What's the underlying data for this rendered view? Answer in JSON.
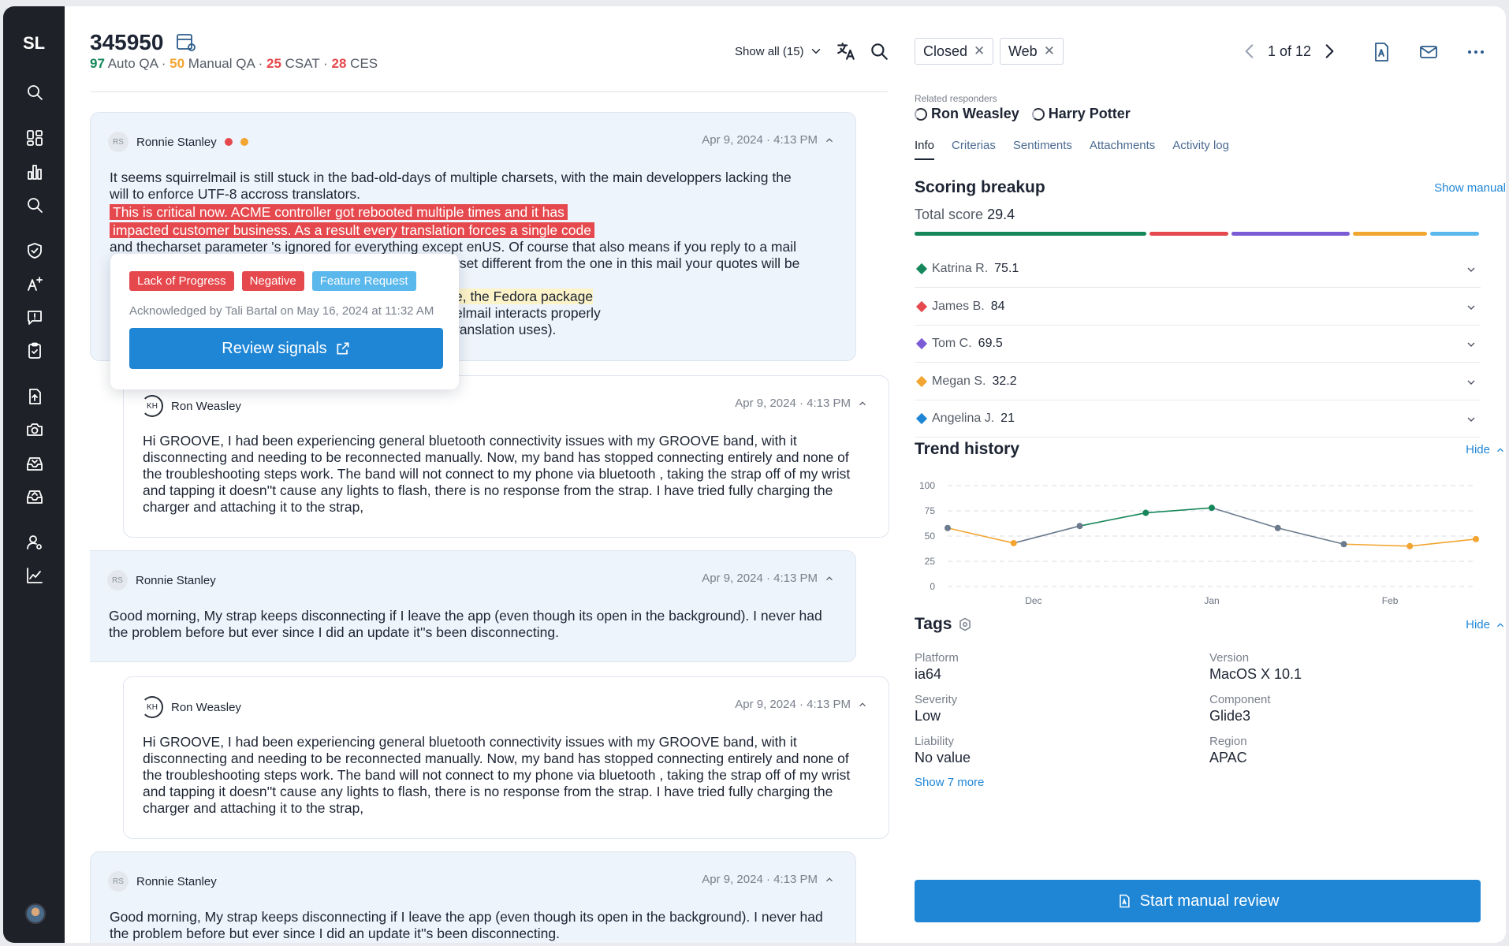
{
  "sidebar": {
    "logo": "SL",
    "icons": [
      "search-icon",
      "dashboard-icon",
      "bar-chart-icon",
      "search-icon",
      "shield-check-icon",
      "auto-qa-icon",
      "feedback-icon",
      "clipboard-check-icon",
      "upload-doc-icon",
      "camera-icon",
      "inbox-in-icon",
      "inbox-out-icon",
      "user-settings-icon",
      "trend-icon"
    ]
  },
  "ticket": {
    "id": "345950",
    "scores": [
      {
        "value": "97",
        "label": "Auto QA",
        "color": "#16875a"
      },
      {
        "value": "50",
        "label": "Manual QA",
        "color": "#f2a531"
      },
      {
        "value": "25",
        "label": "CSAT",
        "color": "#e5484d"
      },
      {
        "value": "28",
        "label": "CES",
        "color": "#e5484d"
      }
    ],
    "score_separator": "·"
  },
  "header": {
    "show_all": "Show all (15)"
  },
  "messages": [
    {
      "author": "Ronnie Stanley",
      "initials": "RS",
      "date": "Apr 9, 2024 · 4:13 PM",
      "line1": "It seems squirrelmail is still stuck in the bad-old-days of multiple charsets, with the main developpers lacking the",
      "line2": "will to enforce UTF-8 accross translators.",
      "hl1": "This is critical now. ACME controller got rebooted multiple times and it has",
      "hl2": "impacted customer business. As a result every translation forces a single code",
      "line3": "and thecharset parameter 's ignored for everything except enUS. Of course that also means if you reply to a mail",
      "line4": "rset different from the one in this mail your quotes will be",
      "line5_hl": "e, the Fedora package",
      "line6": "elmail interacts properly",
      "line7": "ranslation uses)."
    },
    {
      "author": "Ron Weasley",
      "initials": "KH",
      "date": "Apr 9, 2024 · 4:13 PM",
      "body": "Hi GROOVE, I had been experiencing general bluetooth connectivity issues with my GROOVE band, with it disconnecting and needing to be reconnected manually. Now, my band has stopped connecting entirely and none of the troubleshooting steps work. The band will not connect to my phone  via bluetooth , taking the strap off of my wrist and tapping it doesn''t cause any lights to flash, there is  no response  from the strap. I have tried fully charging the charger and attaching it to the strap,"
    },
    {
      "author": "Ronnie Stanley",
      "initials": "RS",
      "date": "Apr 9, 2024 · 4:13 PM",
      "body": "Good morning, My strap keeps disconnecting if I leave the app (even though its open in the background). I never had the problem before but ever since I did an update it''s been disconnecting."
    },
    {
      "author": "Ron Weasley",
      "initials": "KH",
      "date": "Apr 9, 2024 · 4:13 PM",
      "body": "Hi GROOVE, I had been experiencing general bluetooth connectivity issues with my GROOVE band, with it disconnecting and needing to be reconnected manually. Now, my band has stopped connecting entirely and none of the troubleshooting steps work. The band will not connect to my phone  via bluetooth , taking the strap off of my wrist and tapping it doesn''t cause any lights to flash, there is  no response  from the strap. I have tried fully charging the charger and attaching it to the strap,"
    },
    {
      "author": "Ronnie Stanley",
      "initials": "RS",
      "date": "Apr 9, 2024 · 4:13 PM",
      "body": "Good morning, My strap keeps disconnecting if I leave the app (even though its open in the background). I never had the problem before but ever since I did an update it''s been disconnecting."
    }
  ],
  "popup": {
    "chips": [
      {
        "label": "Lack of Progress",
        "color": "#e5484d"
      },
      {
        "label": "Negative",
        "color": "#e5484d"
      },
      {
        "label": "Feature Request",
        "color": "#5ab8ec"
      }
    ],
    "ack": "Acknowledged by Tali Bartal on May 16, 2024 at 11:32 AM",
    "review_button": "Review signals"
  },
  "right": {
    "filters": [
      "Closed",
      "Web"
    ],
    "pager": "1 of 12",
    "related_label": "Related responders",
    "responders": [
      "Ron Weasley",
      "Harry Potter"
    ],
    "tabs": [
      "Info",
      "Criterias",
      "Sentiments",
      "Attachments",
      "Activity log"
    ],
    "scoring_title": "Scoring breakup",
    "show_manual": "Show manual",
    "total_label": "Total score",
    "total_value": "29.4",
    "segment_colors": [
      "#16875a",
      "#e5484d",
      "#7c5cd6",
      "#f2a531",
      "#5ab8ec"
    ],
    "raters": [
      {
        "name": "Katrina R.",
        "score": "75.1",
        "color": "#16875a"
      },
      {
        "name": "James B.",
        "score": "84",
        "color": "#e5484d"
      },
      {
        "name": "Tom C.",
        "score": "69.5",
        "color": "#7c5cd6"
      },
      {
        "name": "Megan S.",
        "score": "32.2",
        "color": "#f2a531"
      },
      {
        "name": "Angelina J.",
        "score": "21",
        "color": "#1f86d6"
      }
    ],
    "trend_title": "Trend history",
    "hide": "Hide",
    "tags_title": "Tags",
    "tags": [
      {
        "key": "Platform",
        "value": "ia64"
      },
      {
        "key": "Version",
        "value": "MacOS X 10.1"
      },
      {
        "key": "Severity",
        "value": "Low"
      },
      {
        "key": "Component",
        "value": "Glide3"
      },
      {
        "key": "Liability",
        "value": "No value"
      },
      {
        "key": "Region",
        "value": "APAC"
      }
    ],
    "show_more": "Show 7 more",
    "start_button": "Start manual review"
  },
  "chart_data": {
    "type": "line",
    "x": [
      0,
      1,
      2,
      3,
      4,
      5,
      6,
      7,
      8
    ],
    "xticks": [
      "Dec",
      "Jan",
      "Feb"
    ],
    "xtick_positions": [
      1.3,
      4,
      6.7
    ],
    "yticks": [
      "0",
      "25",
      "50",
      "75",
      "100"
    ],
    "ylim": [
      0,
      100
    ],
    "values": [
      58,
      43,
      60,
      73,
      78,
      58,
      42,
      40,
      47
    ],
    "point_colors": [
      "#6b7a8d",
      "#f2a531",
      "#6b7a8d",
      "#16875a",
      "#16875a",
      "#6b7a8d",
      "#6b7a8d",
      "#f2a531",
      "#f2a531"
    ],
    "segment_colors": [
      "#f2a531",
      "#6b7a8d",
      "#16875a",
      "#16875a",
      "#6b7a8d",
      "#6b7a8d",
      "#f2a531",
      "#f2a531"
    ],
    "grid": true
  }
}
